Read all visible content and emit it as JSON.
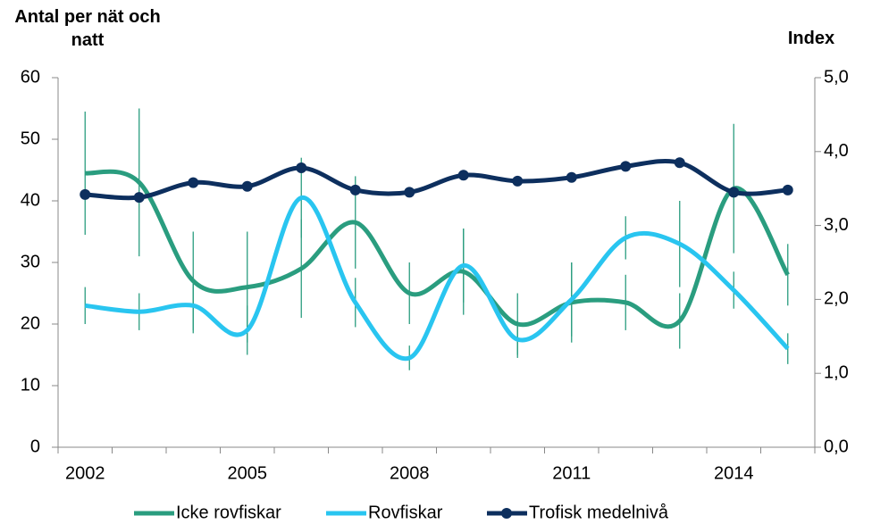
{
  "chart_data": {
    "type": "line",
    "y_label": "Antal per nät och natt",
    "y2_label": "Index",
    "categories": [
      "2002",
      null,
      null,
      "2005",
      null,
      null,
      "2008",
      null,
      null,
      "2011",
      null,
      null,
      "2014",
      null
    ],
    "ylim": [
      0,
      60
    ],
    "yticks": [
      0,
      10,
      20,
      30,
      40,
      50,
      60
    ],
    "y2lim": [
      0,
      5
    ],
    "y2ticks": [
      {
        "value": 0,
        "label": "0,0"
      },
      {
        "value": 1,
        "label": "1,0"
      },
      {
        "value": 2,
        "label": "2,0"
      },
      {
        "value": 3,
        "label": "3,0"
      },
      {
        "value": 4,
        "label": "4,0"
      },
      {
        "value": 5,
        "label": "5,0"
      }
    ],
    "error_bar_color": "#2a9d7f",
    "series": [
      {
        "name": "Icke rovfiskar",
        "color": "#2a9d7f",
        "values": [
          44.5,
          43,
          27,
          26,
          29,
          36.5,
          25,
          28.5,
          20,
          23.5,
          23.5,
          20.5,
          42,
          28
        ],
        "errors": [
          10,
          12,
          8,
          9,
          8,
          7.5,
          5,
          7,
          5,
          6.5,
          4.5,
          4.5,
          10.5,
          5
        ]
      },
      {
        "name": "Rovfiskar",
        "color": "#29c5f0",
        "values": [
          23,
          22,
          23,
          19,
          40.5,
          23.5,
          14.5,
          29.5,
          17.5,
          24,
          34,
          33,
          25.5,
          16
        ],
        "errors": [
          3,
          3,
          4.5,
          4,
          6.5,
          4,
          2,
          6,
          3,
          6,
          3.5,
          7,
          3,
          2.5
        ]
      },
      {
        "name": "Trofisk medelnivå",
        "color": "#0d2f5e",
        "axis": "y2",
        "markers": true,
        "values": [
          3.42,
          3.38,
          3.58,
          3.53,
          3.78,
          3.48,
          3.45,
          3.68,
          3.6,
          3.65,
          3.8,
          3.85,
          3.45,
          3.48
        ]
      }
    ]
  }
}
